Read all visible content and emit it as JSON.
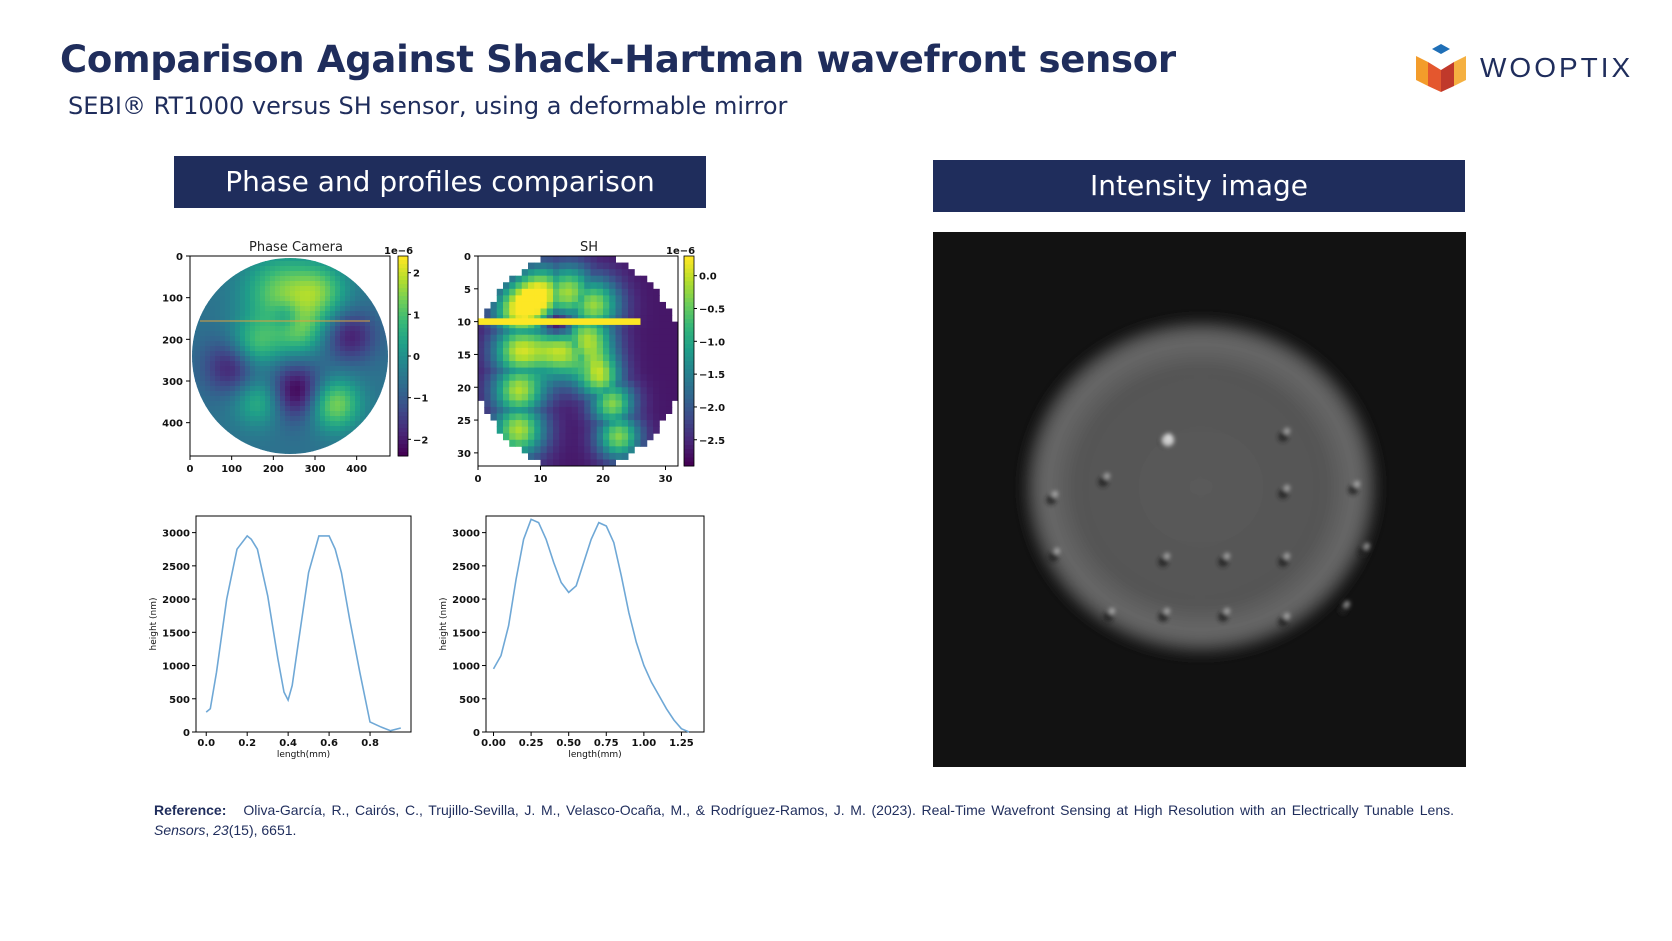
{
  "slide": {
    "title": "Comparison Against Shack-Hartman wavefront sensor",
    "subtitle": "SEBI® RT1000 versus SH sensor, using a deformable mirror",
    "logo_text": "WOOPTIX",
    "banner_left": "Phase and profiles comparison",
    "banner_right": "Intensity image"
  },
  "reference": {
    "label": "Reference:",
    "text_before": "Oliva-García, R., Cairós, C., Trujillo-Sevilla, J. M., Velasco-Ocaña, M., & Rodríguez-Ramos, J. M. (2023). Real-Time Wavefront Sensing at High Resolution with an Electrically Tunable Lens.",
    "journal": "Sensors",
    "volume": "23",
    "issue_pages": "(15), 6651."
  },
  "colors": {
    "navy": "#1f2d5c",
    "profile_line": "#6fa8d6"
  },
  "chart_data": [
    {
      "type": "heatmap",
      "title": "Phase Camera",
      "xticks": [
        "0",
        "100",
        "200",
        "300",
        "400"
      ],
      "yticks": [
        "0",
        "100",
        "200",
        "300",
        "400"
      ],
      "xlim": [
        0,
        480
      ],
      "ylim": [
        0,
        480
      ],
      "colorbar": {
        "exponent": "1e−6",
        "ticks": [
          "2",
          "1",
          "0",
          "−1",
          "−2"
        ],
        "range": [
          -2.4,
          2.4
        ]
      }
    },
    {
      "type": "heatmap",
      "title": "SH",
      "xticks": [
        "0",
        "10",
        "20",
        "30"
      ],
      "yticks": [
        "0",
        "5",
        "10",
        "15",
        "20",
        "25",
        "30"
      ],
      "xlim": [
        0,
        32
      ],
      "ylim": [
        0,
        32
      ],
      "colorbar": {
        "exponent": "1e−6",
        "ticks": [
          "0.0",
          "−0.5",
          "−1.0",
          "−1.5",
          "−2.0",
          "−2.5"
        ],
        "range": [
          -2.9,
          0.3
        ]
      }
    },
    {
      "type": "line",
      "xlabel": "length(mm)",
      "ylabel": "height (nm)",
      "xticks": [
        "0.0",
        "0.2",
        "0.4",
        "0.6",
        "0.8"
      ],
      "yticks": [
        "0",
        "500",
        "1000",
        "1500",
        "2000",
        "2500",
        "3000"
      ],
      "xlim": [
        -0.05,
        1.0
      ],
      "ylim": [
        0,
        3250
      ],
      "x": [
        0.0,
        0.02,
        0.05,
        0.1,
        0.15,
        0.2,
        0.22,
        0.25,
        0.3,
        0.35,
        0.38,
        0.4,
        0.42,
        0.45,
        0.5,
        0.55,
        0.6,
        0.63,
        0.66,
        0.7,
        0.75,
        0.8,
        0.85,
        0.9,
        0.95
      ],
      "y": [
        300,
        350,
        900,
        2000,
        2750,
        2950,
        2900,
        2750,
        2050,
        1100,
        600,
        480,
        700,
        1350,
        2400,
        2950,
        2950,
        2750,
        2400,
        1700,
        900,
        150,
        80,
        20,
        60
      ]
    },
    {
      "type": "line",
      "xlabel": "length(mm)",
      "ylabel": "height (nm)",
      "xticks": [
        "0.00",
        "0.25",
        "0.50",
        "0.75",
        "1.00",
        "1.25"
      ],
      "yticks": [
        "0",
        "500",
        "1000",
        "1500",
        "2000",
        "2500",
        "3000"
      ],
      "xlim": [
        -0.05,
        1.4
      ],
      "ylim": [
        0,
        3250
      ],
      "x": [
        0.0,
        0.05,
        0.1,
        0.15,
        0.2,
        0.25,
        0.3,
        0.35,
        0.4,
        0.45,
        0.5,
        0.55,
        0.6,
        0.65,
        0.7,
        0.75,
        0.8,
        0.85,
        0.9,
        0.95,
        1.0,
        1.05,
        1.1,
        1.15,
        1.2,
        1.25,
        1.3
      ],
      "y": [
        950,
        1150,
        1600,
        2300,
        2900,
        3200,
        3150,
        2900,
        2550,
        2250,
        2100,
        2200,
        2550,
        2900,
        3150,
        3100,
        2850,
        2350,
        1800,
        1350,
        1000,
        750,
        550,
        350,
        180,
        50,
        0
      ]
    }
  ]
}
